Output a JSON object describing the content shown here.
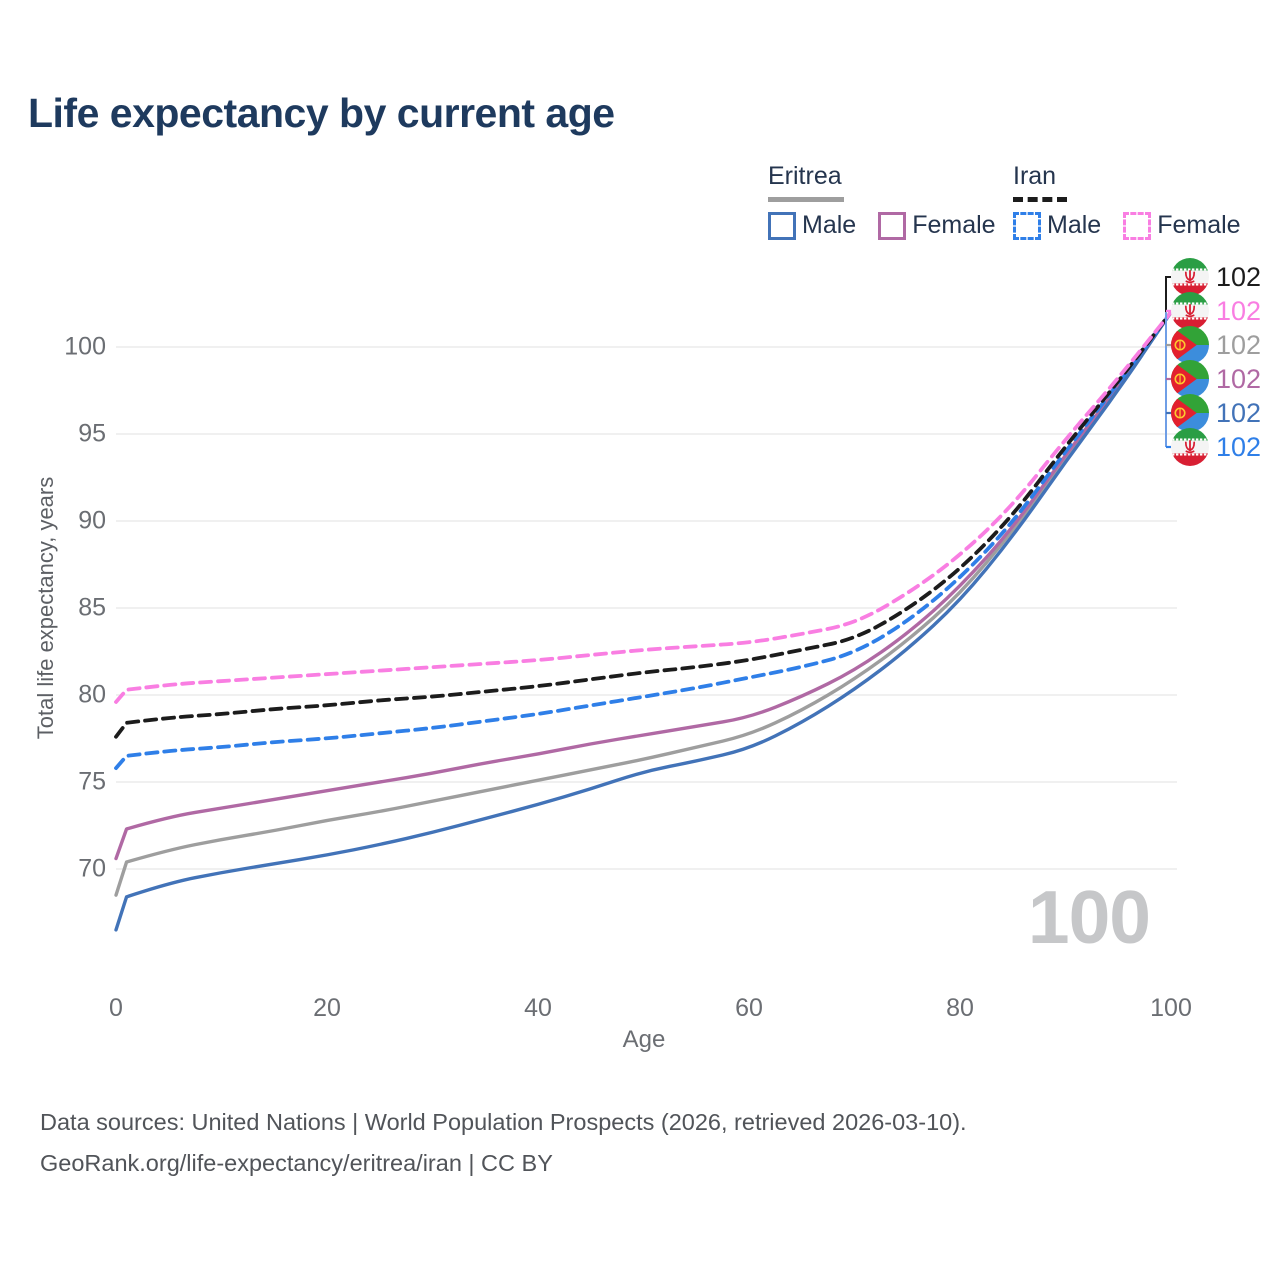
{
  "title": "Life expectancy by current age",
  "legend": {
    "groups": [
      {
        "title": "Eritrea",
        "line_style": "solid",
        "underline_color": "#9e9e9e",
        "items": [
          {
            "label": "Male",
            "color": "#4273b8",
            "dashed": false
          },
          {
            "label": "Female",
            "color": "#b069a4",
            "dashed": false
          }
        ]
      },
      {
        "title": "Iran",
        "line_style": "dashed",
        "underline_color": "#1c1c1c",
        "items": [
          {
            "label": "Male",
            "color": "#2f7fe8",
            "dashed": true
          },
          {
            "label": "Female",
            "color": "#f97ee2",
            "dashed": true
          }
        ]
      }
    ]
  },
  "chart_data": {
    "type": "line",
    "title": "Life expectancy by current age",
    "xlabel": "Age",
    "ylabel": "Total life expectancy, years",
    "x_ticks": [
      0,
      20,
      40,
      60,
      80,
      100
    ],
    "y_ticks": [
      70,
      75,
      80,
      85,
      90,
      95,
      100
    ],
    "xlim": [
      0,
      100
    ],
    "ylim": [
      66,
      103.5
    ],
    "grid": "horizontal-only",
    "legend_position": "top-right",
    "x": [
      0,
      1,
      5,
      10,
      15,
      20,
      25,
      30,
      35,
      40,
      45,
      50,
      55,
      60,
      65,
      70,
      75,
      80,
      85,
      90,
      95,
      100
    ],
    "series": [
      {
        "name": "Eritrea Total",
        "country": "Eritrea",
        "group": "Total",
        "color": "#9e9e9e",
        "dashed": false,
        "values": [
          68.5,
          70.4,
          71.1,
          71.7,
          72.2,
          72.8,
          73.3,
          73.9,
          74.5,
          75.1,
          75.7,
          76.3,
          77.0,
          77.7,
          79.1,
          80.9,
          83.1,
          85.8,
          89.4,
          93.6,
          97.6,
          102
        ]
      },
      {
        "name": "Eritrea Female",
        "country": "Eritrea",
        "group": "Female",
        "color": "#b069a4",
        "dashed": false,
        "values": [
          70.6,
          72.3,
          73.0,
          73.5,
          74.0,
          74.5,
          75.0,
          75.5,
          76.1,
          76.6,
          77.2,
          77.7,
          78.2,
          78.7,
          79.9,
          81.4,
          83.5,
          86.2,
          89.6,
          93.8,
          97.7,
          102
        ]
      },
      {
        "name": "Eritrea Male",
        "country": "Eritrea",
        "group": "Male",
        "color": "#4273b8",
        "dashed": false,
        "values": [
          66.5,
          68.4,
          69.2,
          69.8,
          70.3,
          70.8,
          71.4,
          72.1,
          72.9,
          73.7,
          74.6,
          75.6,
          76.2,
          76.9,
          78.4,
          80.3,
          82.6,
          85.4,
          89.1,
          93.4,
          97.5,
          102
        ]
      },
      {
        "name": "Iran Male",
        "country": "Iran",
        "group": "Male",
        "color": "#2f7fe8",
        "dashed": true,
        "values": [
          75.8,
          76.5,
          76.8,
          77.0,
          77.3,
          77.5,
          77.8,
          78.1,
          78.5,
          78.9,
          79.4,
          79.9,
          80.4,
          81.0,
          81.6,
          82.4,
          84.2,
          86.7,
          89.9,
          94.0,
          97.9,
          102
        ]
      },
      {
        "name": "Iran Total",
        "country": "Iran",
        "group": "Total",
        "color": "#1c1c1c",
        "dashed": true,
        "values": [
          77.6,
          78.4,
          78.7,
          78.9,
          79.2,
          79.4,
          79.7,
          79.9,
          80.2,
          80.5,
          80.9,
          81.3,
          81.6,
          82.0,
          82.6,
          83.2,
          84.9,
          87.2,
          90.3,
          94.3,
          98.0,
          102
        ]
      },
      {
        "name": "Iran Female",
        "country": "Iran",
        "group": "Female",
        "color": "#f97ee2",
        "dashed": true,
        "values": [
          79.6,
          80.3,
          80.6,
          80.8,
          81.0,
          81.2,
          81.4,
          81.6,
          81.8,
          82.0,
          82.3,
          82.6,
          82.8,
          83.0,
          83.5,
          84.1,
          85.8,
          88.0,
          90.9,
          94.7,
          98.2,
          102
        ]
      }
    ],
    "end_labels": [
      {
        "flag": "iran",
        "series": "Iran Total",
        "value": "102",
        "color": "#1c1c1c"
      },
      {
        "flag": "iran",
        "series": "Iran Female",
        "value": "102",
        "color": "#f97ee2"
      },
      {
        "flag": "eritrea",
        "series": "Eritrea Total",
        "value": "102",
        "color": "#9e9e9e"
      },
      {
        "flag": "eritrea",
        "series": "Eritrea Female",
        "value": "102",
        "color": "#b069a4"
      },
      {
        "flag": "eritrea",
        "series": "Eritrea Male",
        "value": "102",
        "color": "#4273b8"
      },
      {
        "flag": "iran",
        "series": "Iran Male",
        "value": "102",
        "color": "#2f7fe8"
      }
    ],
    "watermark": "100"
  },
  "footer": {
    "line1": "Data sources: United Nations | World Population Prospects (2026, retrieved 2026-03-10).",
    "line2": "GeoRank.org/life-expectancy/eritrea/iran | CC BY"
  }
}
